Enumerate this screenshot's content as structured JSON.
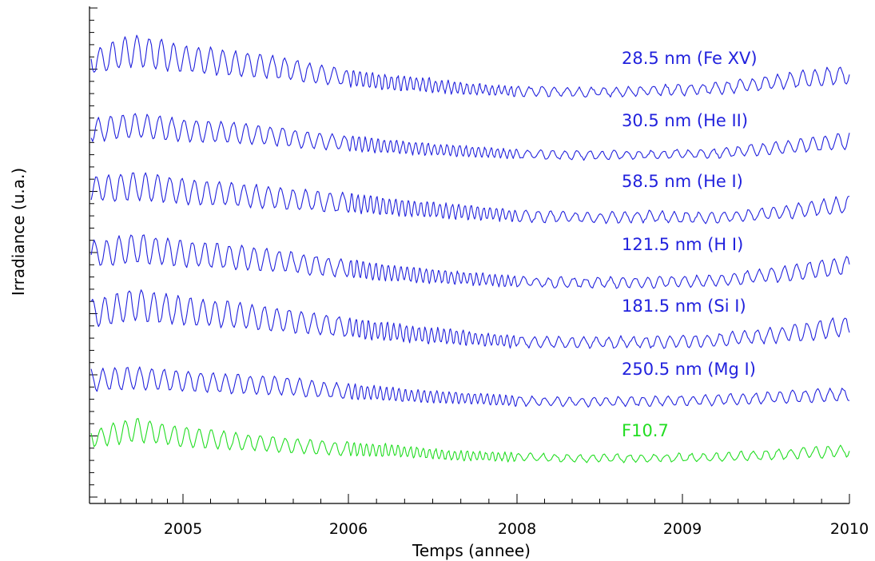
{
  "chart_data": {
    "type": "line",
    "xlabel": "Temps (annee)",
    "ylabel": "Irradiance (u.a.)",
    "x_tick_labels": [
      "2005",
      "2006",
      "2008",
      "2009",
      "2010"
    ],
    "x_tick_years": [
      2005.0,
      2006.0,
      2008.0,
      2009.0,
      2010.0
    ],
    "xlim": [
      2004.43,
      2010.0
    ],
    "grid": false,
    "y_tick_labels_shown": false,
    "series": [
      {
        "name": "28.5 nm (Fe XV)",
        "color": "#2222dd",
        "x": [
          2004.5,
          2004.7,
          2005.0,
          2005.3,
          2005.6,
          2005.9,
          2006.2,
          2006.5,
          2006.8,
          2007.2,
          2007.6,
          2008.0,
          2008.4,
          2008.8,
          2009.2,
          2009.6,
          2010.0
        ],
        "y": [
          0.58,
          0.74,
          0.6,
          0.52,
          0.44,
          0.3,
          0.24,
          0.2,
          0.18,
          0.12,
          0.08,
          0.05,
          0.04,
          0.06,
          0.1,
          0.22,
          0.34
        ]
      },
      {
        "name": "30.5 nm (He II)",
        "color": "#2222dd",
        "x": [
          2004.5,
          2004.7,
          2005.0,
          2005.3,
          2005.6,
          2005.9,
          2006.2,
          2006.5,
          2006.8,
          2007.2,
          2007.6,
          2008.0,
          2008.4,
          2008.8,
          2009.2,
          2009.6,
          2010.0
        ],
        "y": [
          0.62,
          0.7,
          0.6,
          0.55,
          0.46,
          0.35,
          0.3,
          0.26,
          0.22,
          0.18,
          0.14,
          0.1,
          0.08,
          0.09,
          0.12,
          0.24,
          0.38
        ]
      },
      {
        "name": "58.5 nm (He I)",
        "color": "#2222dd",
        "x": [
          2004.5,
          2004.7,
          2005.0,
          2005.3,
          2005.6,
          2005.9,
          2006.2,
          2006.5,
          2006.8,
          2007.2,
          2007.6,
          2008.0,
          2008.4,
          2008.8,
          2009.2,
          2009.6,
          2010.0
        ],
        "y": [
          0.62,
          0.66,
          0.58,
          0.52,
          0.44,
          0.38,
          0.34,
          0.3,
          0.26,
          0.22,
          0.18,
          0.14,
          0.1,
          0.12,
          0.1,
          0.2,
          0.34
        ]
      },
      {
        "name": "121.5 nm (H I)",
        "color": "#2222dd",
        "x": [
          2004.5,
          2004.7,
          2005.0,
          2005.3,
          2005.6,
          2005.9,
          2006.2,
          2006.5,
          2006.8,
          2007.2,
          2007.6,
          2008.0,
          2008.4,
          2008.8,
          2009.2,
          2009.6,
          2010.0
        ],
        "y": [
          0.6,
          0.7,
          0.6,
          0.54,
          0.46,
          0.36,
          0.3,
          0.26,
          0.22,
          0.18,
          0.14,
          0.1,
          0.08,
          0.09,
          0.12,
          0.24,
          0.4
        ]
      },
      {
        "name": "181.5 nm (Si I)",
        "color": "#2222dd",
        "x": [
          2004.5,
          2004.7,
          2005.0,
          2005.3,
          2005.6,
          2005.9,
          2006.2,
          2006.5,
          2006.8,
          2007.2,
          2007.6,
          2008.0,
          2008.4,
          2008.8,
          2009.2,
          2009.6,
          2010.0
        ],
        "y": [
          0.6,
          0.74,
          0.62,
          0.56,
          0.48,
          0.38,
          0.32,
          0.28,
          0.24,
          0.2,
          0.16,
          0.12,
          0.1,
          0.11,
          0.14,
          0.24,
          0.38
        ]
      },
      {
        "name": "250.5 nm (Mg I)",
        "color": "#2222dd",
        "x": [
          2004.5,
          2004.7,
          2005.0,
          2005.3,
          2005.6,
          2005.9,
          2006.2,
          2006.5,
          2006.8,
          2007.2,
          2007.6,
          2008.0,
          2008.4,
          2008.8,
          2009.2,
          2009.6,
          2010.0
        ],
        "y": [
          0.56,
          0.6,
          0.54,
          0.48,
          0.44,
          0.34,
          0.3,
          0.26,
          0.22,
          0.2,
          0.16,
          0.12,
          0.1,
          0.12,
          0.14,
          0.2,
          0.26
        ]
      },
      {
        "name": "F10.7",
        "color": "#22dd22",
        "x": [
          2004.5,
          2004.7,
          2005.0,
          2005.3,
          2005.6,
          2005.9,
          2006.2,
          2006.5,
          2006.8,
          2007.2,
          2007.6,
          2008.0,
          2008.4,
          2008.8,
          2009.2,
          2009.6,
          2010.0
        ],
        "y": [
          0.5,
          0.66,
          0.5,
          0.42,
          0.34,
          0.26,
          0.24,
          0.22,
          0.18,
          0.12,
          0.1,
          0.08,
          0.06,
          0.06,
          0.08,
          0.14,
          0.22
        ]
      }
    ]
  }
}
